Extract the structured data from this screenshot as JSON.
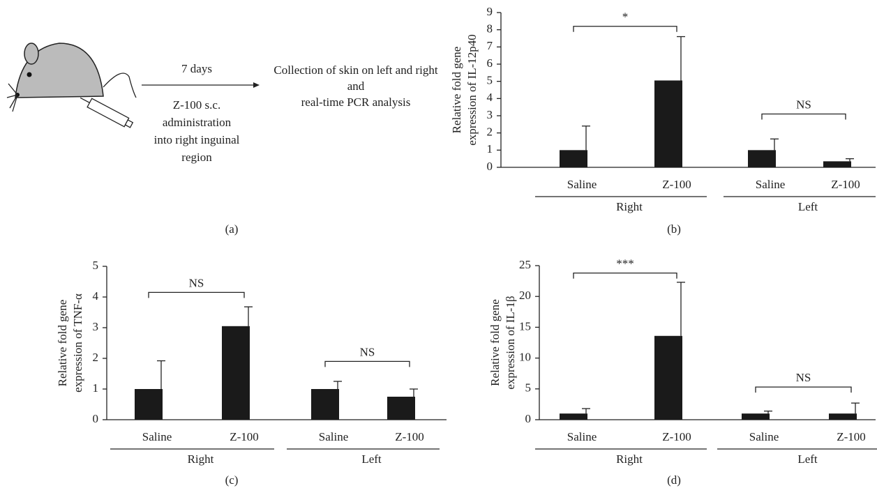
{
  "diagram": {
    "arrow_top": "7 days",
    "arrow_bottom": [
      "Z-100 s.c.",
      "administration",
      "into right inguinal",
      "region"
    ],
    "result": [
      "Collection of skin on left and right",
      "and",
      "real-time PCR analysis"
    ],
    "panel": "(a)"
  },
  "chart_data": [
    {
      "type": "bar",
      "panel": "(b)",
      "y_label": [
        "Relative fold gene",
        "expression of IL-12p40"
      ],
      "categories": [
        "Saline",
        "Z-100",
        "Saline",
        "Z-100"
      ],
      "groups": [
        "Right",
        "Left"
      ],
      "values": [
        1,
        5.05,
        1,
        0.35
      ],
      "errors": [
        1.4,
        2.55,
        0.65,
        0.15
      ],
      "color": "#1a1a1a",
      "ylim": [
        0,
        9
      ],
      "yticks": [
        0,
        1,
        2,
        3,
        4,
        5,
        6,
        7,
        8,
        9
      ],
      "brackets": [
        {
          "label": "*",
          "y": 8.2
        },
        {
          "label": "NS",
          "y": 3.1
        }
      ]
    },
    {
      "type": "bar",
      "panel": "(c)",
      "y_label": [
        "Relative fold gene",
        "expression of TNF-α"
      ],
      "categories": [
        "Saline",
        "Z-100",
        "Saline",
        "Z-100"
      ],
      "groups": [
        "Right",
        "Left"
      ],
      "values": [
        1,
        3.05,
        1,
        0.75
      ],
      "errors": [
        0.92,
        0.63,
        0.25,
        0.25
      ],
      "color": "#1a1a1a",
      "ylim": [
        0,
        5
      ],
      "yticks": [
        0,
        1,
        2,
        3,
        4,
        5
      ],
      "brackets": [
        {
          "label": "NS",
          "y": 4.15
        },
        {
          "label": "NS",
          "y": 1.9
        }
      ]
    },
    {
      "type": "bar",
      "panel": "(d)",
      "y_label": [
        "Relative fold gene",
        "expression of IL-1β"
      ],
      "categories": [
        "Saline",
        "Z-100",
        "Saline",
        "Z-100"
      ],
      "groups": [
        "Right",
        "Left"
      ],
      "values": [
        1,
        13.6,
        1,
        1
      ],
      "errors": [
        0.8,
        8.7,
        0.4,
        1.7
      ],
      "color": "#1a1a1a",
      "ylim": [
        0,
        25
      ],
      "yticks": [
        0,
        5,
        10,
        15,
        20,
        25
      ],
      "brackets": [
        {
          "label": "***",
          "y": 23.8
        },
        {
          "label": "NS",
          "y": 5.3
        }
      ]
    }
  ]
}
